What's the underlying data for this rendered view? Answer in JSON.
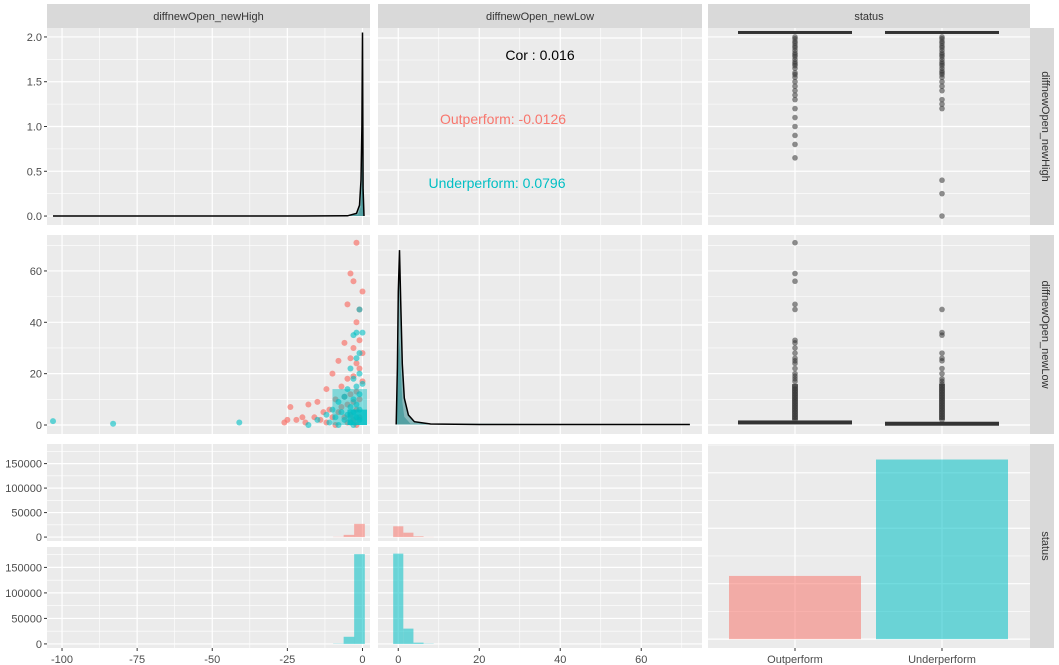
{
  "colors": {
    "outperform": "#F8766D",
    "underperform": "#00BFC4",
    "panel_bg": "#EBEBEB",
    "strip_bg": "#D9D9D9",
    "grid": "#FFFFFF",
    "density_fill": "#7FB3B5",
    "text": "#4D4D4D"
  },
  "strips": {
    "col1": "diffnewOpen_newHigh",
    "col2": "diffnewOpen_newLow",
    "col3": "status",
    "row1": "diffnewOpen_newHigh",
    "row2": "diffnewOpen_newLow",
    "row3": "status"
  },
  "chart_data": [
    {
      "id": "density-high",
      "type": "area",
      "x_ticks": [
        "-100",
        "-75",
        "-50",
        "-25",
        "0"
      ],
      "y_ticks": [
        "0.0",
        "0.5",
        "1.0",
        "1.5",
        "2.0"
      ],
      "xlim": [
        -105,
        2.5
      ],
      "ylim": [
        -0.1,
        2.1
      ],
      "density_total": [
        [
          -103,
          0
        ],
        [
          -20,
          0
        ],
        [
          -5,
          0.003
        ],
        [
          -2,
          0.03
        ],
        [
          -1,
          0.12
        ],
        [
          -0.5,
          0.4
        ],
        [
          -0.2,
          1.0
        ],
        [
          0,
          2.05
        ],
        [
          0.2,
          0.3
        ],
        [
          0.5,
          0
        ]
      ],
      "density_small": [
        [
          -103,
          0
        ],
        [
          -5,
          0
        ],
        [
          -1.5,
          0.02
        ],
        [
          -0.6,
          0.1
        ],
        [
          -0.2,
          0.35
        ],
        [
          0,
          0.7
        ],
        [
          0.2,
          0.1
        ],
        [
          0.5,
          0
        ]
      ]
    },
    {
      "id": "correlation",
      "type": "table",
      "x_ticks": [
        "0",
        "20",
        "40",
        "60"
      ],
      "xlim": [
        -5,
        75
      ],
      "overall_label": "Cor : 0.016",
      "groups": [
        {
          "label": "Outperform: -0.0126",
          "group": "Outperform"
        },
        {
          "label": "Underperform: 0.0796",
          "group": "Underperform"
        }
      ]
    },
    {
      "id": "box-high",
      "type": "box",
      "categories": [
        "Outperform",
        "Underperform"
      ],
      "ylim": [
        -0.1,
        2.1
      ],
      "box_value": 2.05,
      "outliers": [
        [
          2.0,
          1.98,
          1.95,
          1.93,
          1.9,
          1.88,
          1.85,
          1.82,
          1.8,
          1.78,
          1.75,
          1.72,
          1.7,
          1.68,
          1.65,
          1.6,
          1.58,
          1.55,
          1.5,
          1.45,
          1.4,
          1.35,
          1.3,
          1.2,
          1.1,
          1.0,
          0.9,
          0.8,
          0.65
        ],
        [
          2.0,
          1.98,
          1.95,
          1.93,
          1.9,
          1.88,
          1.85,
          1.82,
          1.8,
          1.78,
          1.75,
          1.72,
          1.7,
          1.68,
          1.65,
          1.62,
          1.6,
          1.58,
          1.55,
          1.5,
          1.45,
          1.4,
          1.3,
          1.25,
          1.2,
          0.25,
          0.4,
          0.0
        ]
      ]
    },
    {
      "id": "scatter-high-low",
      "type": "scatter",
      "y_ticks": [
        "0",
        "20",
        "40",
        "60"
      ],
      "xlim": [
        -105,
        2.5
      ],
      "ylim": [
        -3.5,
        74
      ],
      "outperform": [
        [
          -2,
          71
        ],
        [
          -4,
          59
        ],
        [
          -3,
          56
        ],
        [
          0,
          52
        ],
        [
          -1,
          45
        ],
        [
          -5,
          47
        ],
        [
          -2,
          40
        ],
        [
          -1,
          33
        ],
        [
          -6,
          32
        ],
        [
          -3,
          30
        ],
        [
          0,
          28
        ],
        [
          -4,
          26
        ],
        [
          -8,
          25
        ],
        [
          -2,
          24
        ],
        [
          -1,
          22
        ],
        [
          -10,
          20
        ],
        [
          -3,
          19
        ],
        [
          -5,
          18
        ],
        [
          0,
          17
        ],
        [
          -7,
          15
        ],
        [
          -12,
          14
        ],
        [
          -2,
          13
        ],
        [
          -4,
          12
        ],
        [
          -6,
          11
        ],
        [
          -9,
          10
        ],
        [
          -1,
          10
        ],
        [
          -3,
          9
        ],
        [
          -15,
          9
        ],
        [
          -18,
          8
        ],
        [
          -5,
          8
        ],
        [
          -7,
          7
        ],
        [
          -24,
          7
        ],
        [
          -11,
          6
        ],
        [
          -2,
          6
        ],
        [
          -13,
          5
        ],
        [
          -8,
          5
        ],
        [
          -4,
          4
        ],
        [
          -20,
          3
        ],
        [
          -16,
          3
        ],
        [
          -10,
          3
        ],
        [
          -6,
          3
        ],
        [
          -1,
          3
        ],
        [
          -25,
          2
        ],
        [
          -22,
          2
        ],
        [
          -14,
          2
        ],
        [
          -3,
          2
        ],
        [
          -26,
          1
        ],
        [
          -19,
          1
        ],
        [
          -12,
          1
        ],
        [
          -5,
          1
        ],
        [
          -9,
          0
        ],
        [
          -2,
          0
        ]
      ],
      "underperform": [
        [
          -1,
          45
        ],
        [
          -2,
          36
        ],
        [
          -3,
          35
        ],
        [
          0,
          36
        ],
        [
          -1,
          28
        ],
        [
          -2,
          26
        ],
        [
          -4,
          22
        ],
        [
          -1,
          20
        ],
        [
          -3,
          18
        ],
        [
          0,
          16
        ],
        [
          -2,
          15
        ],
        [
          -5,
          14
        ],
        [
          -1,
          12
        ],
        [
          -6,
          11
        ],
        [
          -3,
          10
        ],
        [
          -8,
          9
        ],
        [
          -2,
          8
        ],
        [
          -4,
          7
        ],
        [
          -10,
          6
        ],
        [
          -1,
          6
        ],
        [
          -7,
          5
        ],
        [
          -3,
          5
        ],
        [
          -12,
          4
        ],
        [
          -5,
          4
        ],
        [
          -2,
          3
        ],
        [
          -9,
          3
        ],
        [
          -15,
          2
        ],
        [
          -6,
          2
        ],
        [
          -1,
          2
        ],
        [
          -11,
          1
        ],
        [
          -4,
          1
        ],
        [
          -18,
          0
        ],
        [
          -8,
          0
        ],
        [
          -3,
          0
        ],
        [
          -103,
          1.5
        ],
        [
          -83,
          0.5
        ],
        [
          -41,
          1
        ]
      ]
    },
    {
      "id": "density-low",
      "type": "area",
      "x_ticks": [
        "0",
        "20",
        "40",
        "60"
      ],
      "xlim": [
        -5,
        75
      ],
      "ylim": [
        -0.5,
        10
      ],
      "density_total": [
        [
          -0.5,
          0
        ],
        [
          -0.2,
          3
        ],
        [
          0,
          7
        ],
        [
          0.3,
          9.2
        ],
        [
          0.6,
          6.5
        ],
        [
          1,
          3.2
        ],
        [
          1.5,
          1.4
        ],
        [
          2.5,
          0.5
        ],
        [
          4,
          0.15
        ],
        [
          8,
          0.03
        ],
        [
          20,
          0
        ],
        [
          72,
          0
        ]
      ],
      "density_small": [
        [
          -0.5,
          0
        ],
        [
          -0.2,
          1.3
        ],
        [
          0,
          3.5
        ],
        [
          0.3,
          4.5
        ],
        [
          0.6,
          3
        ],
        [
          1,
          1.2
        ],
        [
          1.5,
          0.4
        ],
        [
          3,
          0.05
        ],
        [
          72,
          0
        ]
      ]
    },
    {
      "id": "box-low",
      "type": "box",
      "categories": [
        "Outperform",
        "Underperform"
      ],
      "ylim": [
        -3.5,
        74
      ],
      "box_value": [
        1,
        0.5
      ],
      "outliers": [
        [
          71,
          59,
          56,
          47,
          45,
          33,
          32,
          30,
          28,
          26,
          25,
          24,
          22,
          20,
          19,
          18,
          17,
          15,
          14,
          13,
          12,
          11,
          10,
          9,
          8,
          7,
          6,
          5,
          4,
          3,
          2
        ],
        [
          45,
          36,
          35,
          28,
          26,
          25,
          22,
          20,
          18,
          17,
          16,
          15,
          14,
          13,
          12,
          11,
          10,
          9,
          8,
          7,
          6,
          5,
          4,
          3,
          2
        ]
      ]
    },
    {
      "id": "hist-high",
      "type": "bar",
      "y_ticks": [
        "0",
        "50000",
        "100000",
        "150000"
      ],
      "xlim": [
        -105,
        2.5
      ],
      "bin_width": 3.55,
      "outperform": [
        [
          -8,
          500
        ],
        [
          -4.5,
          4500
        ],
        [
          -1,
          27000
        ]
      ],
      "underperform": [
        [
          -8,
          500
        ],
        [
          -4.5,
          14000
        ],
        [
          -1,
          176000
        ]
      ]
    },
    {
      "id": "hist-low",
      "type": "bar",
      "xlim": [
        -5,
        75
      ],
      "bin_width": 2.5,
      "outperform": [
        [
          0,
          22000
        ],
        [
          2.5,
          9000
        ],
        [
          5,
          1500
        ],
        [
          7.5,
          300
        ]
      ],
      "underperform": [
        [
          0,
          177000
        ],
        [
          2.5,
          30000
        ],
        [
          5,
          2500
        ],
        [
          7.5,
          500
        ]
      ]
    },
    {
      "id": "bar-status",
      "type": "bar",
      "categories": [
        "Outperform",
        "Underperform"
      ],
      "values": [
        57000,
        162000
      ]
    }
  ]
}
